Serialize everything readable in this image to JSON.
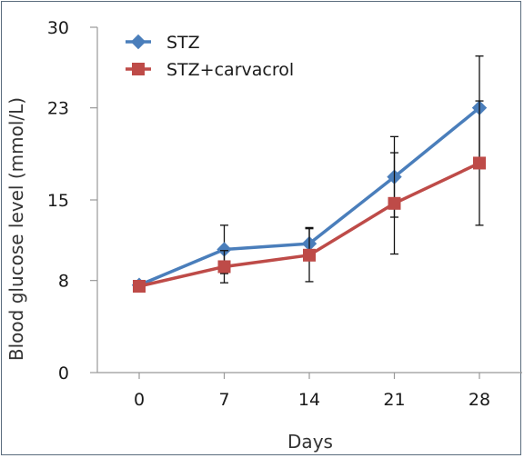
{
  "chart_data": {
    "type": "line",
    "x": [
      0,
      7,
      14,
      21,
      28
    ],
    "xlabel": "Days",
    "ylabel": "Blood glucose level (mmol/L)",
    "ylim": [
      0,
      30
    ],
    "yticks": [
      0,
      8,
      15,
      23,
      30
    ],
    "legend_position": "top-left",
    "series": [
      {
        "name": "STZ",
        "color": "#4a7ebb",
        "marker": "diamond",
        "values": [
          7.6,
          10.7,
          11.2,
          17.0,
          23.0
        ],
        "error": [
          0.4,
          2.1,
          1.4,
          3.5,
          4.5
        ]
      },
      {
        "name": "STZ+carvacrol",
        "color": "#be4b48",
        "marker": "square",
        "values": [
          7.5,
          9.2,
          10.2,
          14.7,
          18.2
        ],
        "error": [
          0.4,
          1.4,
          2.3,
          4.4,
          5.4
        ]
      }
    ]
  }
}
